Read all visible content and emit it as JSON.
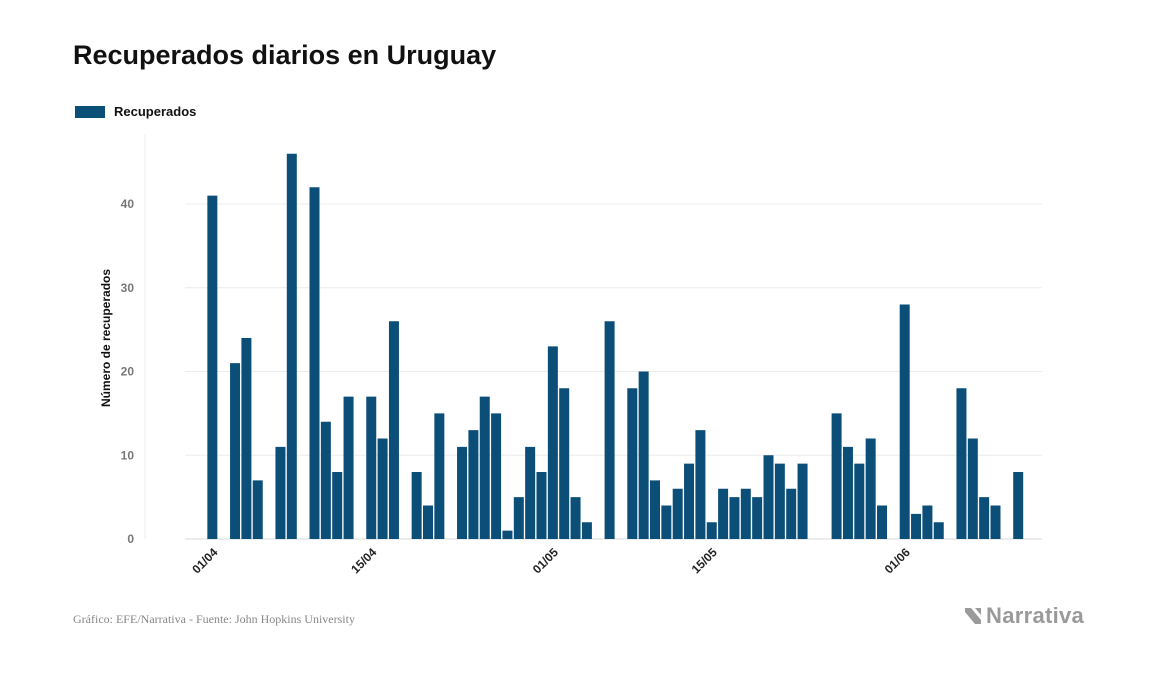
{
  "title": "Recuperados diarios en Uruguay",
  "legend": {
    "label": "Recuperados",
    "color": "#0b4f78",
    "icon": "legend-swatch"
  },
  "footer": {
    "source": "Gráfico: EFE/Narrativa - Fuente: John Hopkins University"
  },
  "logo": {
    "text": "Narrativa",
    "icon": "narrativa-logo-icon"
  },
  "chart_data": {
    "type": "bar",
    "ylabel": "Número de recuperados",
    "yticks": [
      0,
      10,
      20,
      30,
      40
    ],
    "ylim": [
      0,
      47
    ],
    "grid": true,
    "legend_position": "top-left",
    "bar_color": "#0b4f78",
    "xtick_labels": [
      {
        "label": "01/04",
        "index": 1
      },
      {
        "label": "15/04",
        "index": 15
      },
      {
        "label": "01/05",
        "index": 31
      },
      {
        "label": "15/05",
        "index": 45
      },
      {
        "label": "01/06",
        "index": 62
      }
    ],
    "values": [
      0,
      41,
      0,
      21,
      24,
      7,
      0,
      11,
      46,
      0,
      42,
      14,
      8,
      17,
      0,
      17,
      12,
      26,
      0,
      8,
      4,
      15,
      0,
      11,
      13,
      17,
      15,
      1,
      5,
      11,
      8,
      23,
      18,
      5,
      2,
      0,
      26,
      0,
      18,
      20,
      7,
      4,
      6,
      9,
      13,
      2,
      6,
      5,
      6,
      5,
      10,
      9,
      6,
      9,
      0,
      0,
      15,
      11,
      9,
      12,
      4,
      0,
      28,
      3,
      4,
      2,
      0,
      18,
      12,
      5,
      4,
      0,
      8
    ]
  }
}
